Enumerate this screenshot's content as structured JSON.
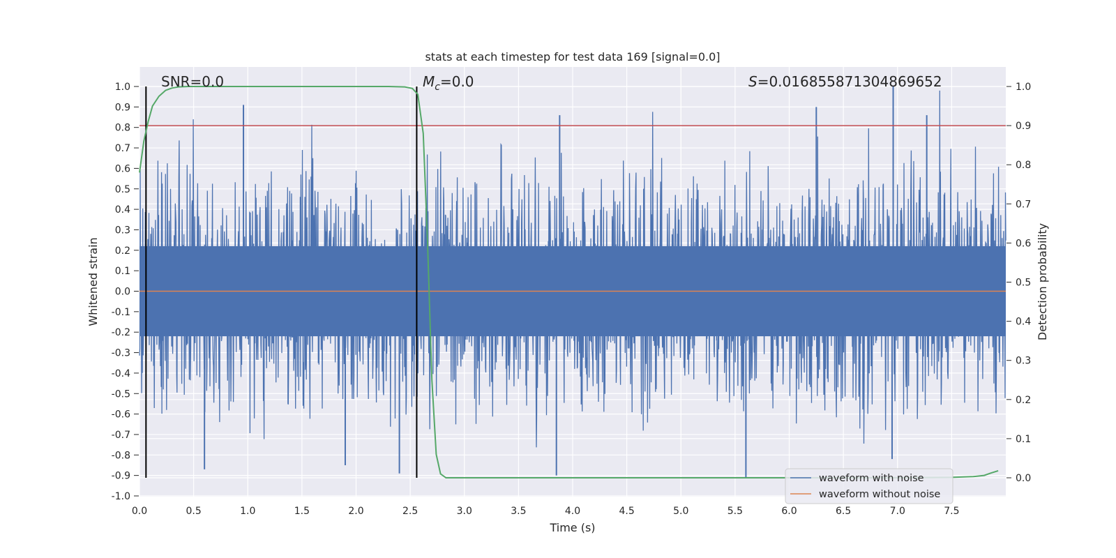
{
  "chart_data": {
    "type": "line",
    "title": "stats at each timestep for test data 169 [signal=0.0]",
    "xlabel": "Time (s)",
    "ylabel": "Whitened strain",
    "y2label": "Detection probability",
    "xlim": [
      0.0,
      8.0
    ],
    "ylim": [
      -1.0,
      1.0
    ],
    "y2lim": [
      -0.045,
      1.045
    ],
    "x_ticks": [
      "0.0",
      "0.5",
      "1.0",
      "1.5",
      "2.0",
      "2.5",
      "3.0",
      "3.5",
      "4.0",
      "4.5",
      "5.0",
      "5.5",
      "6.0",
      "6.5",
      "7.0",
      "7.5"
    ],
    "y_ticks": [
      "1.0",
      "0.9",
      "0.8",
      "0.7",
      "0.6",
      "0.5",
      "0.4",
      "0.3",
      "0.2",
      "0.1",
      "0.0",
      "-0.1",
      "-0.2",
      "-0.3",
      "-0.4",
      "-0.5",
      "-0.6",
      "-0.7",
      "-0.8",
      "-0.9",
      "-1.0"
    ],
    "y2_ticks": [
      "1.0",
      "0.9",
      "0.8",
      "0.7",
      "0.6",
      "0.5",
      "0.4",
      "0.3",
      "0.2",
      "0.1",
      "0.0"
    ],
    "annotations": {
      "snr": "SNR=0.0",
      "mc_symbol": "M",
      "mc_sub": "c",
      "mc_value": "=0.0",
      "s_symbol": "S",
      "s_value": "=0.016855871304869652"
    },
    "vlines_x": [
      0.06,
      2.56
    ],
    "threshold_y2": 0.9,
    "legend": {
      "location": "lower right",
      "entries": [
        "waveform with noise",
        "waveform without noise"
      ]
    },
    "series": [
      {
        "name": "waveform with noise",
        "color": "#4c72b0",
        "x_range": [
          0.0,
          8.0
        ],
        "amplitude_envelope": "noise roughly within [-0.9, 1.0]",
        "notable_peaks": [
          {
            "x": 0.96,
            "y": 0.91
          },
          {
            "x": 3.88,
            "y": 0.86
          },
          {
            "x": 6.25,
            "y": 0.9
          },
          {
            "x": 6.96,
            "y": 1.0
          },
          {
            "x": 7.27,
            "y": 0.86
          }
        ],
        "notable_troughs": [
          {
            "x": 0.6,
            "y": -0.87
          },
          {
            "x": 1.9,
            "y": -0.85
          },
          {
            "x": 2.4,
            "y": -0.89
          },
          {
            "x": 3.85,
            "y": -0.9
          },
          {
            "x": 5.6,
            "y": -0.91
          },
          {
            "x": 6.95,
            "y": -0.82
          }
        ]
      },
      {
        "name": "waveform without noise",
        "color": "#dd8452",
        "x": [
          0.0,
          8.0
        ],
        "y": [
          0.0,
          0.0
        ]
      },
      {
        "name": "detection probability",
        "axis": "right",
        "color": "#55a868",
        "x": [
          0.0,
          0.04,
          0.08,
          0.12,
          0.18,
          0.24,
          0.3,
          0.36,
          0.45,
          0.6,
          1.0,
          1.5,
          2.0,
          2.3,
          2.45,
          2.52,
          2.57,
          2.62,
          2.66,
          2.7,
          2.74,
          2.78,
          2.83,
          3.0,
          4.0,
          5.0,
          6.0,
          7.0,
          7.5,
          7.7,
          7.8,
          7.86,
          7.93
        ],
        "y": [
          0.78,
          0.86,
          0.91,
          0.95,
          0.975,
          0.99,
          0.996,
          0.999,
          1.0,
          1.0,
          1.0,
          1.0,
          1.0,
          1.0,
          0.999,
          0.995,
          0.98,
          0.88,
          0.6,
          0.25,
          0.06,
          0.01,
          0.0,
          0.0,
          0.0,
          0.0,
          0.0,
          0.0,
          0.001,
          0.003,
          0.006,
          0.012,
          0.018
        ]
      }
    ]
  }
}
